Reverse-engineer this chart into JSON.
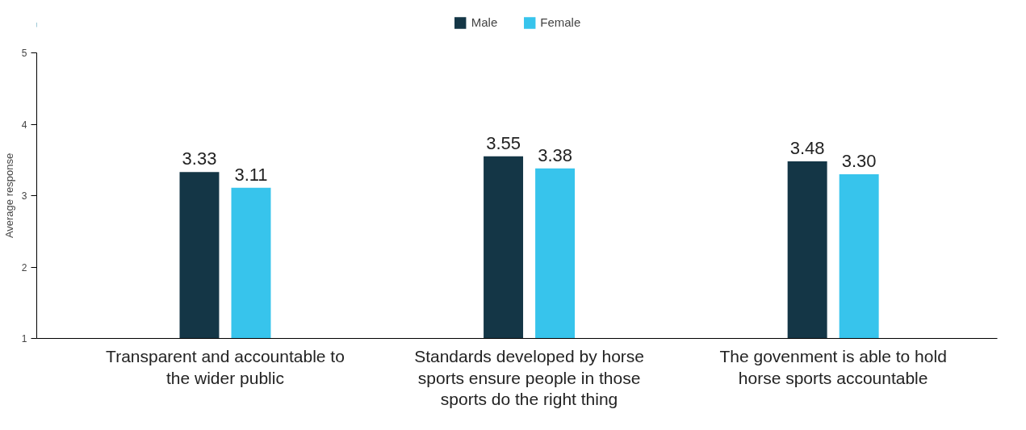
{
  "chart_data": {
    "type": "bar",
    "ylabel": "Average response",
    "categories": [
      "Transparent and accountable to the wider public",
      "Standards developed by horse sports ensure people in those sports do the right thing",
      "The govenment is able to hold horse sports accountable"
    ],
    "series": [
      {
        "name": "Male",
        "color": "#143646",
        "values": [
          3.33,
          3.55,
          3.48
        ],
        "value_labels": [
          "3.33",
          "3.55",
          "3.48"
        ]
      },
      {
        "name": "Female",
        "color": "#37c4ec",
        "values": [
          3.11,
          3.38,
          3.3
        ],
        "value_labels": [
          "3.11",
          "3.38",
          "3.30"
        ]
      }
    ],
    "ylim": [
      1,
      5
    ],
    "yticks": [
      1,
      2,
      3,
      4,
      5
    ],
    "legend": "top"
  }
}
